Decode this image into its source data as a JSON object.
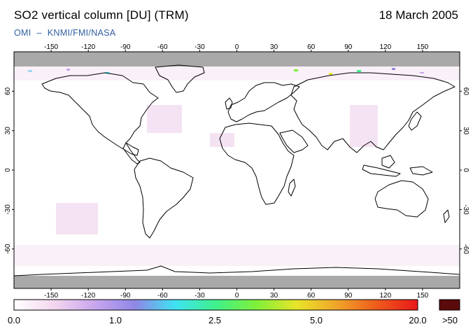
{
  "header": {
    "title": "SO2 vertical column [DU] (TRM)",
    "date": "18 March 2005",
    "credit": [
      "OMI",
      "KNMI/FMI/NASA"
    ]
  },
  "map": {
    "projection": "equirectangular",
    "lon_range": [
      -180,
      180
    ],
    "lat_range": [
      -90,
      90
    ],
    "lon_ticks": [
      -150,
      -120,
      -90,
      -60,
      -30,
      0,
      30,
      60,
      90,
      120,
      150
    ],
    "lat_ticks": [
      60,
      30,
      0,
      -30,
      -60
    ],
    "no_data_color": "#a9a9a9",
    "land_outline_color": "#000000",
    "background_color": "#ffffff"
  },
  "colorbar": {
    "tick_labels": [
      "0.0",
      "1.0",
      "2.5",
      "5.0",
      "20.0",
      ">50"
    ],
    "gradient_colors": [
      "#ffffff",
      "#f3d6ef",
      "#c8a6ee",
      "#8f87e6",
      "#3fe3f2",
      "#3ff08b",
      "#7ff03a",
      "#e8e42a",
      "#f0a42a",
      "#ee5a1c",
      "#e8181a"
    ],
    "overflow_color": "#5a0a0a"
  }
}
